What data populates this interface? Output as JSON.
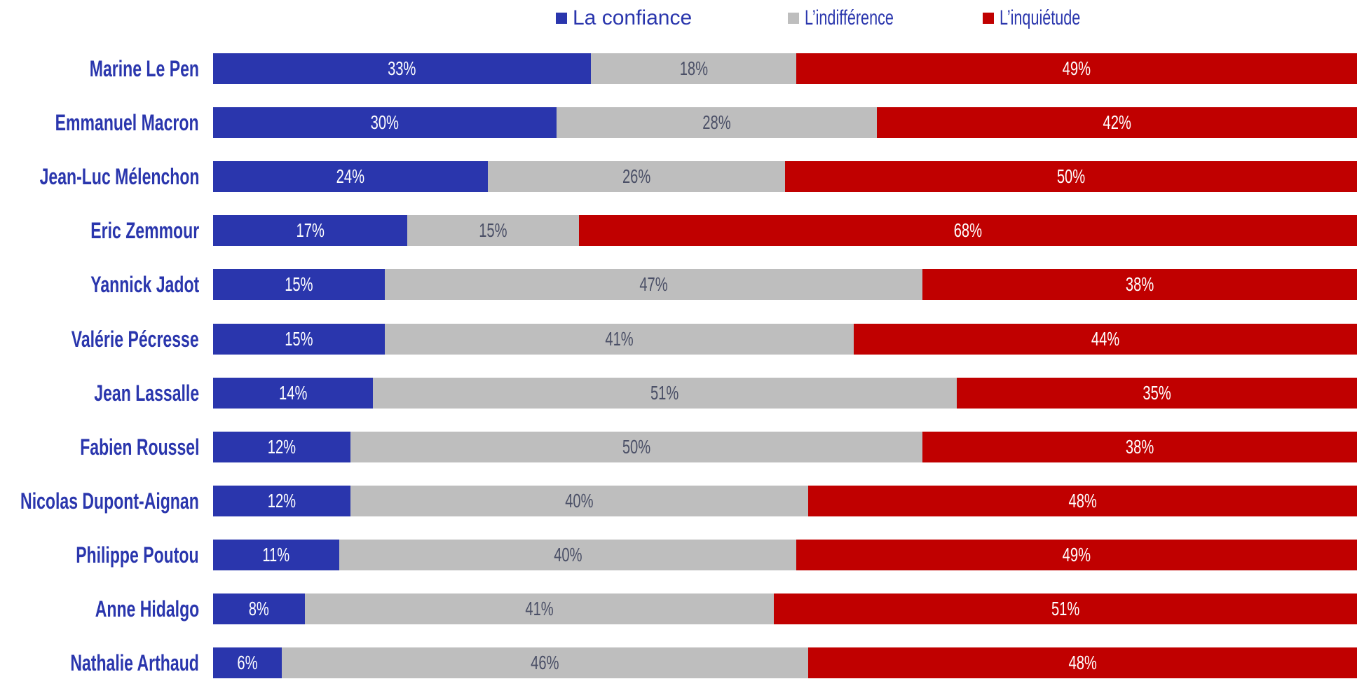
{
  "chart_data": {
    "type": "bar",
    "orientation": "horizontal",
    "stacked": true,
    "legend_position": "top",
    "grid": false,
    "xlim": [
      0,
      100
    ],
    "categories": [
      "Marine Le Pen",
      "Emmanuel Macron",
      "Jean-Luc Mélenchon",
      "Eric Zemmour",
      "Yannick Jadot",
      "Valérie Pécresse",
      "Jean Lassalle",
      "Fabien Roussel",
      "Nicolas Dupont-Aignan",
      "Philippe Poutou",
      "Anne Hidalgo",
      "Nathalie Arthaud"
    ],
    "series": [
      {
        "name": "La confiance",
        "color": "#2a36ad",
        "label_color": "#ffffff",
        "values": [
          33,
          30,
          24,
          17,
          15,
          15,
          14,
          12,
          12,
          11,
          8,
          6
        ]
      },
      {
        "name": "L’indifférence",
        "color": "#bebebe",
        "label_color": "#4a4f66",
        "values": [
          18,
          28,
          26,
          15,
          47,
          41,
          51,
          50,
          40,
          40,
          41,
          46
        ]
      },
      {
        "name": "L’inquiétude",
        "color": "#c00000",
        "label_color": "#ffffff",
        "values": [
          49,
          42,
          50,
          68,
          38,
          44,
          35,
          38,
          48,
          49,
          51,
          48
        ]
      }
    ],
    "value_format": "{v}%",
    "label_color": "#2a36ad"
  }
}
